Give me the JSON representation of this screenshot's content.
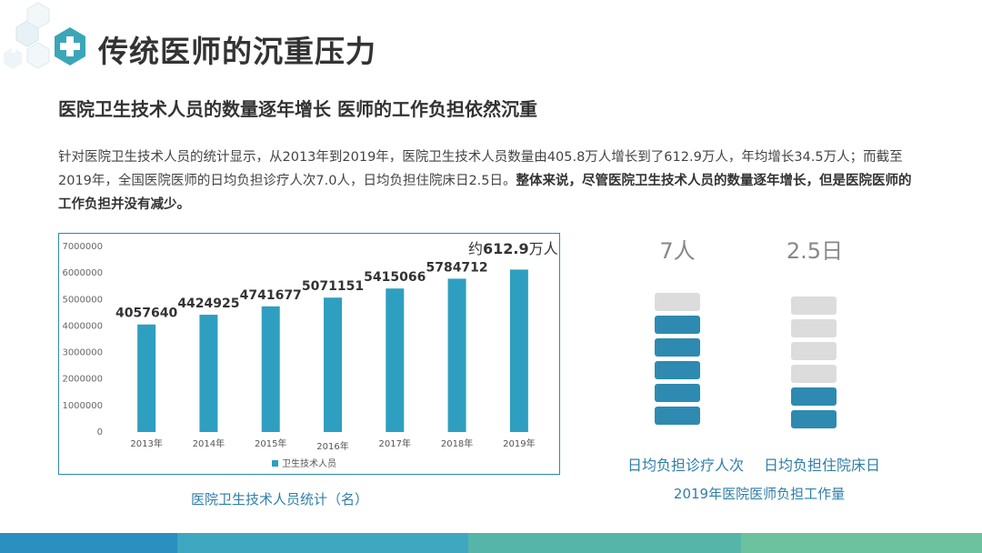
{
  "header": {
    "title": "传统医师的沉重压力",
    "subtitle": "医院卫生技术人员的数量逐年增长 医师的工作负担依然沉重"
  },
  "paragraph": {
    "normal": "针对医院卫生技术人员的统计显示，从2013年到2019年，医院卫生技术人员数量由405.8万人增长到了612.9万人，年均增长34.5万人；而截至2019年，全国医院医师的日均负担诊疗人次7.0人，日均负担住院床日2.5日。",
    "bold": "整体来说，尽管医院卫生技术人员的数量逐年增长，但是医院医师的工作负担并没有减少。"
  },
  "chart_data": {
    "type": "bar",
    "categories": [
      "2013年",
      "2014年",
      "2015年",
      "2016年",
      "2017年",
      "2018年",
      "2019年"
    ],
    "series": [
      {
        "name": "卫生技术人员",
        "values": [
          4057640,
          4424925,
          4741677,
          5071151,
          5415066,
          5784712,
          6129000
        ]
      }
    ],
    "data_labels": [
      "4057640",
      "4424925",
      "4741677",
      "5071151",
      "5415066",
      "5784712",
      ""
    ],
    "annotation": {
      "prefix": "约",
      "value": "612.9",
      "suffix": "万人"
    },
    "yticks": [
      "0",
      "1000000",
      "2000000",
      "3000000",
      "4000000",
      "5000000",
      "6000000",
      "7000000"
    ],
    "ylim": [
      0,
      7000000
    ],
    "bar_color": "#2e9fc0",
    "legend_position": "bottom",
    "caption": "医院卫生技术人员统计（名）"
  },
  "gauges": {
    "items": [
      {
        "value_text": "7人",
        "label": "日均负担诊疗人次",
        "filled": 5,
        "total": 6
      },
      {
        "value_text": "2.5日",
        "label": "日均负担住院床日",
        "filled": 2,
        "total": 6
      }
    ],
    "caption": "2019年医院医师负担工作量",
    "filled_color": "#2e8ab0",
    "empty_color": "#dcdcdc"
  },
  "footer_colors": [
    "#2b8fbf",
    "#3fa7c0",
    "#55b5a8",
    "#6cc29e"
  ]
}
